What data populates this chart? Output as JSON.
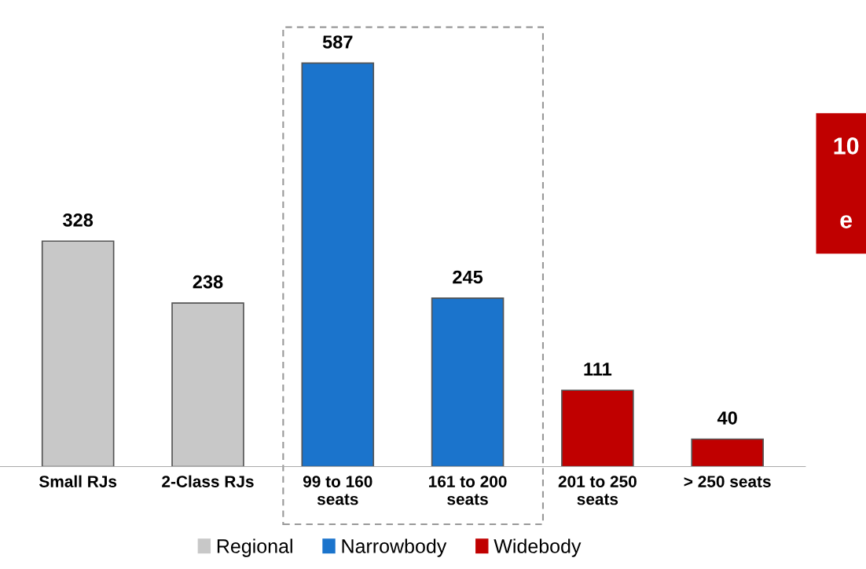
{
  "chart_data": {
    "type": "bar",
    "categories": [
      "Small RJs",
      "2-Class RJs",
      "99 to 160\nseats",
      "161 to 200\nseats",
      "201 to 250\nseats",
      "> 250 seats"
    ],
    "series": [
      {
        "name": "Regional",
        "color": "#c8c8c8",
        "values": [
          328,
          238,
          null,
          null,
          null,
          null
        ]
      },
      {
        "name": "Narrowbody",
        "color": "#1b74cc",
        "values": [
          null,
          null,
          587,
          245,
          null,
          null
        ]
      },
      {
        "name": "Widebody",
        "color": "#c00000",
        "values": [
          null,
          null,
          null,
          null,
          111,
          40
        ]
      }
    ],
    "data_labels": true,
    "legend": "bottom",
    "grid": false,
    "annotations": [
      "10",
      "e"
    ]
  }
}
